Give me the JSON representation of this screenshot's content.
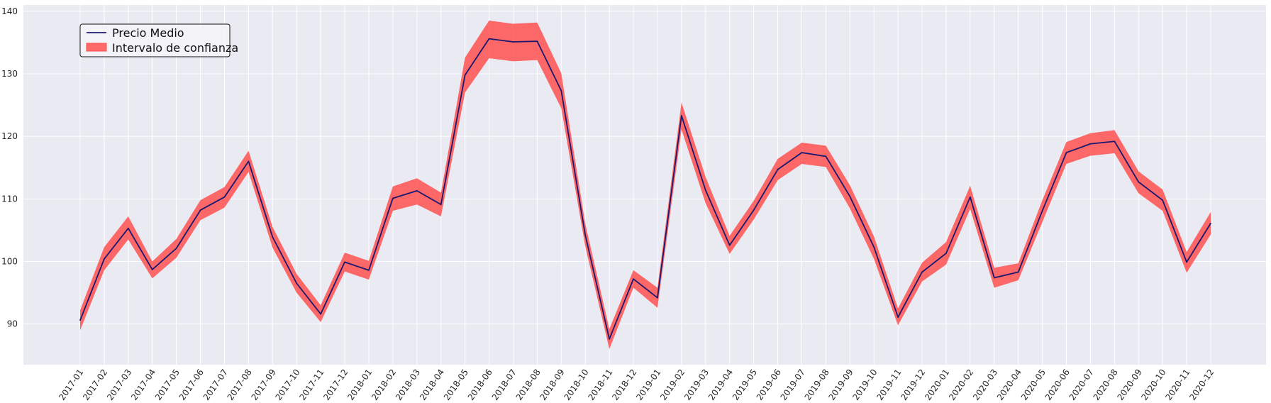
{
  "chart_data": {
    "type": "line",
    "title": "",
    "xlabel": "",
    "ylabel": "",
    "x": [
      "2017-01",
      "2017-02",
      "2017-03",
      "2017-04",
      "2017-05",
      "2017-06",
      "2017-07",
      "2017-08",
      "2017-09",
      "2017-10",
      "2017-11",
      "2017-12",
      "2018-01",
      "2018-02",
      "2018-03",
      "2018-04",
      "2018-05",
      "2018-06",
      "2018-07",
      "2018-08",
      "2018-09",
      "2018-10",
      "2018-11",
      "2018-12",
      "2019-01",
      "2019-02",
      "2019-03",
      "2019-04",
      "2019-05",
      "2019-06",
      "2019-07",
      "2019-08",
      "2019-09",
      "2019-10",
      "2019-11",
      "2019-12",
      "2020-01",
      "2020-02",
      "2020-03",
      "2020-04",
      "2020-05",
      "2020-06",
      "2020-07",
      "2020-08",
      "2020-09",
      "2020-10",
      "2020-11",
      "2020-12"
    ],
    "ylim": [
      83.5,
      141
    ],
    "yticks": [
      90,
      100,
      110,
      120,
      130,
      140
    ],
    "grid": true,
    "legend_position": "top-left",
    "series": [
      {
        "name": "Precio Medio",
        "color": "#191970",
        "values": [
          90.6,
          100.4,
          105.3,
          98.7,
          102.1,
          108.2,
          110.3,
          116.0,
          103.9,
          96.5,
          91.6,
          99.9,
          98.6,
          110.1,
          111.3,
          109.1,
          129.8,
          135.6,
          135.1,
          135.2,
          127.3,
          104.2,
          87.6,
          97.2,
          94.2,
          123.3,
          111.4,
          102.6,
          108.2,
          114.7,
          117.4,
          116.8,
          110.4,
          102.3,
          91.1,
          98.3,
          101.3,
          110.3,
          97.4,
          98.3,
          108.1,
          117.4,
          118.8,
          119.2,
          112.7,
          109.8,
          99.9,
          106.1
        ]
      },
      {
        "name": "Intervalo de confianza",
        "type": "band",
        "color": "#ff5050",
        "lower": [
          89.0,
          98.6,
          103.5,
          97.3,
          100.6,
          106.6,
          108.6,
          114.3,
          102.2,
          95.0,
          90.3,
          98.4,
          97.1,
          108.1,
          109.1,
          107.2,
          127.0,
          132.5,
          132.0,
          132.2,
          124.5,
          102.4,
          86.0,
          95.8,
          92.6,
          121.1,
          109.3,
          101.2,
          106.7,
          113.0,
          115.6,
          115.1,
          108.5,
          100.4,
          89.8,
          96.8,
          99.5,
          108.4,
          95.8,
          97.0,
          106.3,
          115.6,
          116.9,
          117.3,
          110.9,
          108.1,
          98.2,
          104.3
        ],
        "upper": [
          92.2,
          102.3,
          107.2,
          100.0,
          103.6,
          109.8,
          111.9,
          117.7,
          105.5,
          98.0,
          93.0,
          101.4,
          100.1,
          112.0,
          113.3,
          111.0,
          132.6,
          138.5,
          138.0,
          138.2,
          130.1,
          106.0,
          89.2,
          98.6,
          95.8,
          125.4,
          113.5,
          104.1,
          109.7,
          116.4,
          119.0,
          118.5,
          112.2,
          104.0,
          92.5,
          99.8,
          103.1,
          112.1,
          99.0,
          99.7,
          109.8,
          119.1,
          120.5,
          121.0,
          114.4,
          111.5,
          101.5,
          107.9
        ]
      }
    ]
  }
}
